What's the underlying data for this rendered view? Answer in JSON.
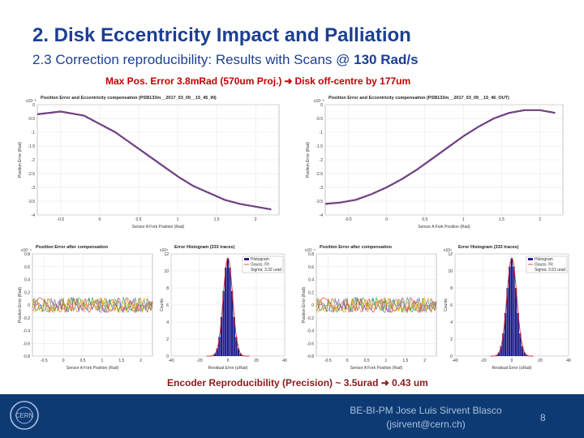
{
  "slide": {
    "title": "2. Disk Eccentricity Impact and Palliation",
    "subtitle_prefix": "2.3 Correction reproducibility: Results with Scans @ ",
    "subtitle_bold": "130 Rad/s",
    "note_top_left": "Max Pos. Error 3.8mRad (570um Proj.)",
    "note_top_right": "Disk off-centre by 177um",
    "note_bottom_left": "Encoder Reproducibility (Precision) ~ 3.5urad",
    "note_bottom_right": "0.43 um",
    "footer_line1": "BE-BI-PM Jose Luis Sirvent Blasco",
    "footer_line2": "(jsirvent@cern.ch)",
    "page_number": "8",
    "logo_text": "CERN",
    "colors": {
      "title": "#1c3f94",
      "note_red": "#c00000",
      "footer_bg": "#0e3a73",
      "footer_text": "#a9c0e0"
    }
  },
  "chart_data": [
    {
      "type": "line",
      "title": "Position Error and Eccentricity compensation (PSB133m__2017_03_09__15_45_IN)",
      "scale_label": "x10⁻³",
      "xlabel": "Sensor A Fork Position (Rad)",
      "ylabel": "Position Error (Rad)",
      "xlim": [
        -0.8,
        2.3
      ],
      "ylim": [
        -4,
        0
      ],
      "xticks": [
        "-0.5",
        "0",
        "0.5",
        "1",
        "1.5",
        "2"
      ],
      "yticks": [
        "0",
        "-0.5",
        "-1",
        "-1.5",
        "-2",
        "-2.5",
        "-3",
        "-3.5",
        "-4"
      ],
      "series": [
        {
          "x": [
            -0.8,
            -0.5,
            -0.2,
            0.0,
            0.2,
            0.4,
            0.6,
            0.8,
            1.0,
            1.2,
            1.4,
            1.6,
            1.8,
            2.0,
            2.2
          ],
          "y": [
            -0.35,
            -0.25,
            -0.4,
            -0.7,
            -1.0,
            -1.4,
            -1.8,
            -2.2,
            -2.6,
            -2.95,
            -3.2,
            -3.45,
            -3.6,
            -3.7,
            -3.8
          ]
        }
      ],
      "grid": true
    },
    {
      "type": "line",
      "title": "Position Error and Eccentricity compensation (PSB133m__2017_03_09__15_46_OUT)",
      "scale_label": "x10⁻³",
      "xlabel": "Sensor A Fork Position (Rad)",
      "ylabel": "Position Error (Rad)",
      "xlim": [
        -0.8,
        2.3
      ],
      "ylim": [
        -4,
        0
      ],
      "xticks": [
        "-0.5",
        "0",
        "0.5",
        "1",
        "1.5",
        "2"
      ],
      "yticks": [
        "0",
        "-0.5",
        "-1",
        "-1.5",
        "-2",
        "-2.5",
        "-3",
        "-3.5",
        "-4"
      ],
      "series": [
        {
          "x": [
            -0.8,
            -0.6,
            -0.4,
            -0.2,
            0.0,
            0.2,
            0.4,
            0.6,
            0.8,
            1.0,
            1.2,
            1.4,
            1.6,
            1.8,
            2.0,
            2.2
          ],
          "y": [
            -3.6,
            -3.55,
            -3.45,
            -3.25,
            -3.0,
            -2.7,
            -2.35,
            -1.95,
            -1.55,
            -1.15,
            -0.8,
            -0.5,
            -0.3,
            -0.2,
            -0.2,
            -0.3
          ]
        }
      ],
      "grid": true
    },
    {
      "type": "line",
      "title": "Position Error after compensation",
      "scale_label": "x10⁻⁴",
      "xlabel": "Sensor A Fork Position (Rad)",
      "ylabel": "Position Error (Rad)",
      "xlim": [
        -0.8,
        2.3
      ],
      "ylim": [
        -0.8,
        0.8
      ],
      "xticks": [
        "-0.5",
        "0",
        "0.5",
        "1",
        "1.5",
        "2"
      ],
      "yticks": [
        "0.8",
        "0.6",
        "0.4",
        "0.2",
        "0",
        "-0.2",
        "-0.4",
        "-0.6",
        "-0.8"
      ],
      "series_count": 333,
      "band": [
        -0.12,
        0.12
      ],
      "grid": true
    },
    {
      "type": "bar",
      "title": "Error Histogram (333 traces)",
      "scale_label": "x10⁴",
      "xlabel": "Residual Error (uRad)",
      "ylabel": "Counts",
      "xlim": [
        -40,
        40
      ],
      "ylim": [
        0,
        12
      ],
      "xticks": [
        "-40",
        "-20",
        "0",
        "20",
        "40"
      ],
      "yticks": [
        "12",
        "10",
        "8",
        "6",
        "4",
        "2",
        "0"
      ],
      "legend": [
        "Histogram",
        "Gauss. Fit",
        "Sigma: 3.32 urad"
      ],
      "sigma": 3.32,
      "peak": 11.5,
      "grid": true
    },
    {
      "type": "line",
      "title": "Position Error after compensation",
      "scale_label": "x10⁻⁴",
      "xlabel": "Sensor A Fork Position (Rad)",
      "ylabel": "Position Error (Rad)",
      "xlim": [
        -0.8,
        2.3
      ],
      "ylim": [
        -0.8,
        0.8
      ],
      "xticks": [
        "-0.5",
        "0",
        "0.5",
        "1",
        "1.5",
        "2"
      ],
      "yticks": [
        "0.8",
        "0.6",
        "0.4",
        "0.2",
        "0",
        "-0.2",
        "-0.4",
        "-0.6",
        "-0.8"
      ],
      "series_count": 333,
      "band": [
        -0.12,
        0.12
      ],
      "grid": true
    },
    {
      "type": "bar",
      "title": "Error Histogram (333 traces)",
      "scale_label": "x10⁴",
      "xlabel": "Residual Error (uRad)",
      "ylabel": "Counts",
      "xlim": [
        -40,
        40
      ],
      "ylim": [
        0,
        12
      ],
      "xticks": [
        "-40",
        "-20",
        "0",
        "20",
        "40"
      ],
      "yticks": [
        "12",
        "10",
        "8",
        "6",
        "4",
        "2",
        "0"
      ],
      "legend": [
        "Histogram",
        "Gauss. Fit",
        "Sigma: 3.51 urad"
      ],
      "sigma": 3.51,
      "peak": 11.5,
      "grid": true
    }
  ]
}
